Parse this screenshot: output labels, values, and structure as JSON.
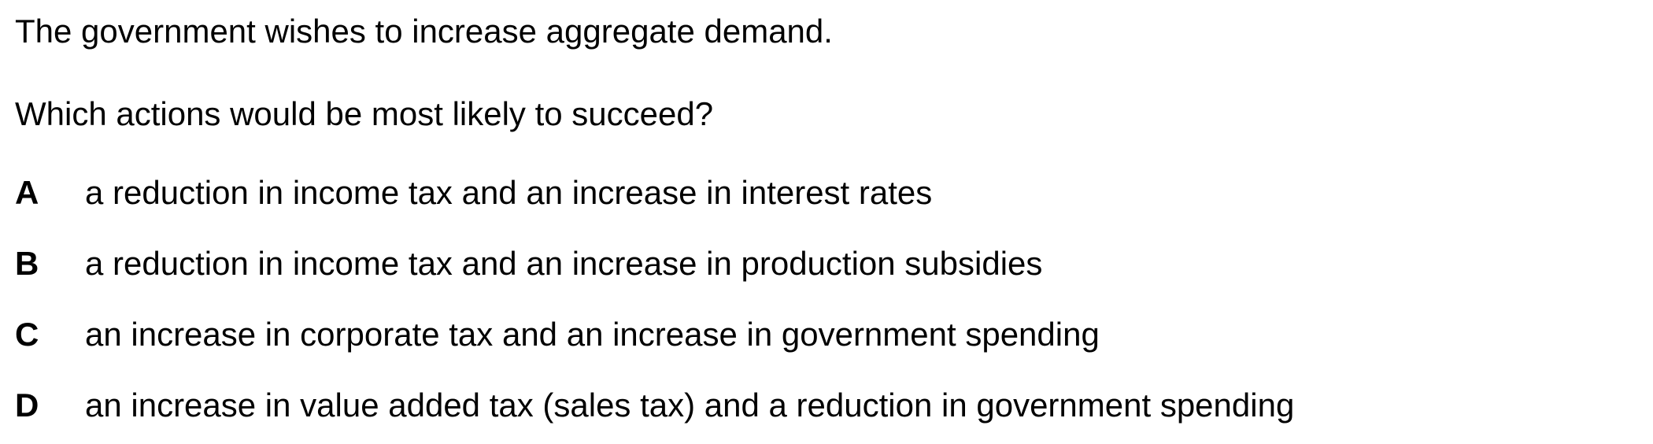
{
  "question": {
    "stem": "The government wishes to increase aggregate demand.",
    "prompt": "Which actions would be most likely to succeed?"
  },
  "options": [
    {
      "letter": "A",
      "text": "a reduction in income tax and an increase in interest rates"
    },
    {
      "letter": "B",
      "text": "a reduction in income tax and an increase in production subsidies"
    },
    {
      "letter": "C",
      "text": "an increase in corporate tax and an increase in government spending"
    },
    {
      "letter": "D",
      "text": "an increase in value added tax (sales tax) and a reduction in government spending"
    }
  ]
}
